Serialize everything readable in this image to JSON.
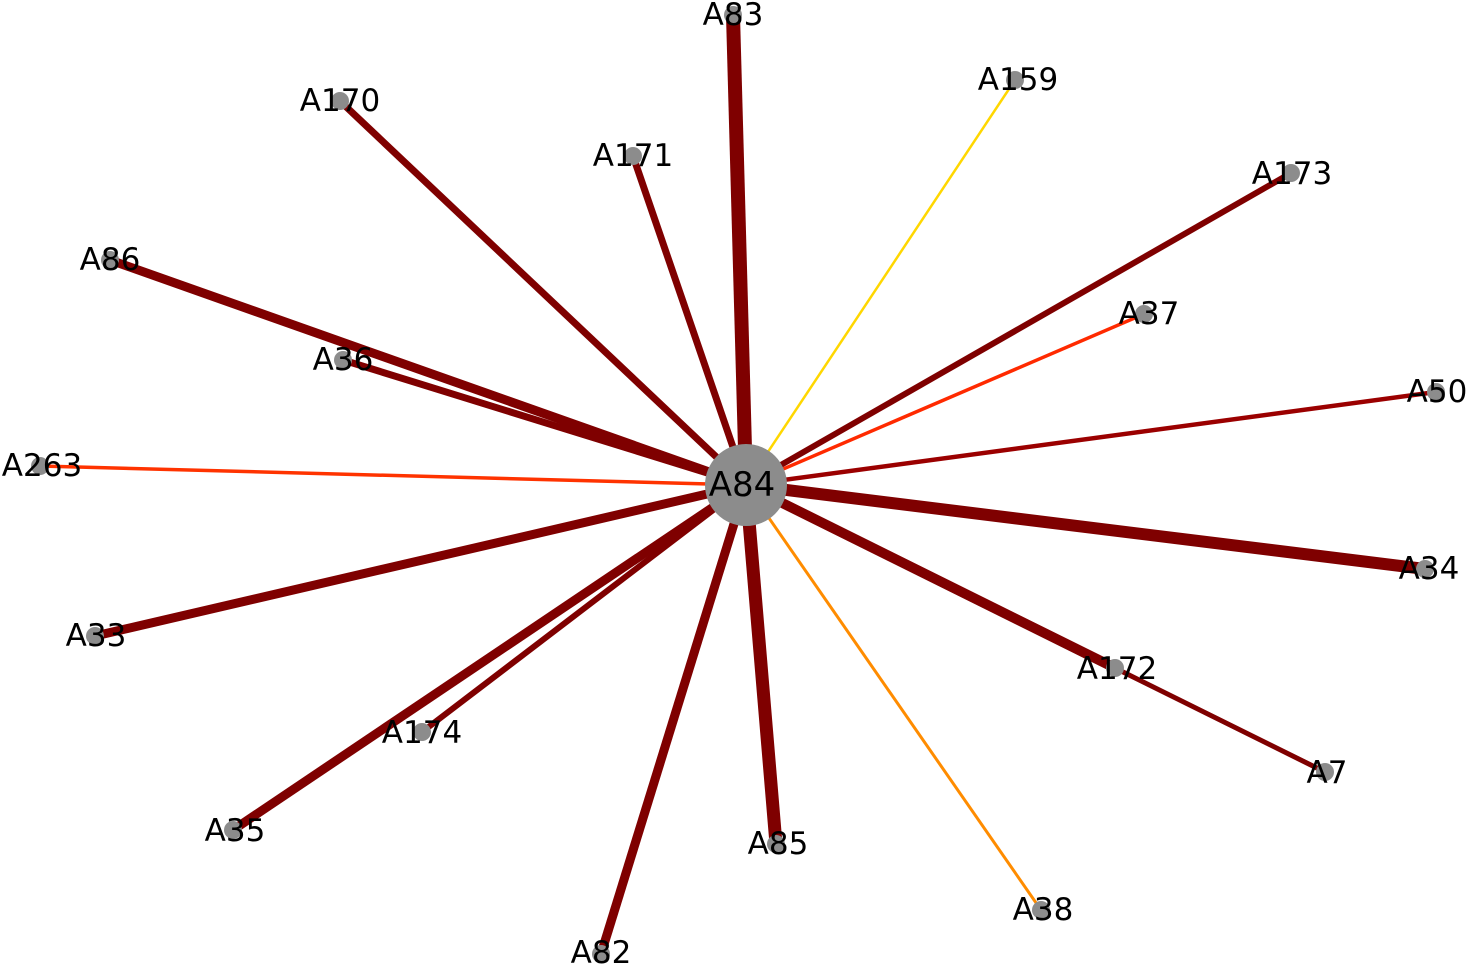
{
  "hub": {
    "label": "A84",
    "color": "#8c8c8c"
  },
  "leaf_color": "#8c8c8c",
  "nodes": [
    {
      "id": "A83",
      "edge_color": "#7f0000"
    },
    {
      "id": "A159",
      "edge_color": "#ffd700"
    },
    {
      "id": "A170",
      "edge_color": "#7f0000"
    },
    {
      "id": "A171",
      "edge_color": "#7f0000"
    },
    {
      "id": "A173",
      "edge_color": "#7f0000"
    },
    {
      "id": "A86",
      "edge_color": "#7f0000"
    },
    {
      "id": "A37",
      "edge_color": "#ff2a00"
    },
    {
      "id": "A36",
      "edge_color": "#7f0000"
    },
    {
      "id": "A50",
      "edge_color": "#9b0000"
    },
    {
      "id": "A263",
      "edge_color": "#ff3300"
    },
    {
      "id": "A34",
      "edge_color": "#7f0000"
    },
    {
      "id": "A33",
      "edge_color": "#7f0000"
    },
    {
      "id": "A172",
      "edge_color": "#7f0000"
    },
    {
      "id": "A174",
      "edge_color": "#7f0000"
    },
    {
      "id": "A7",
      "edge_color": "#7f0000"
    },
    {
      "id": "A35",
      "edge_color": "#7f0000"
    },
    {
      "id": "A85",
      "edge_color": "#7f0000"
    },
    {
      "id": "A38",
      "edge_color": "#ff8c00"
    },
    {
      "id": "A82",
      "edge_color": "#7f0000"
    }
  ]
}
